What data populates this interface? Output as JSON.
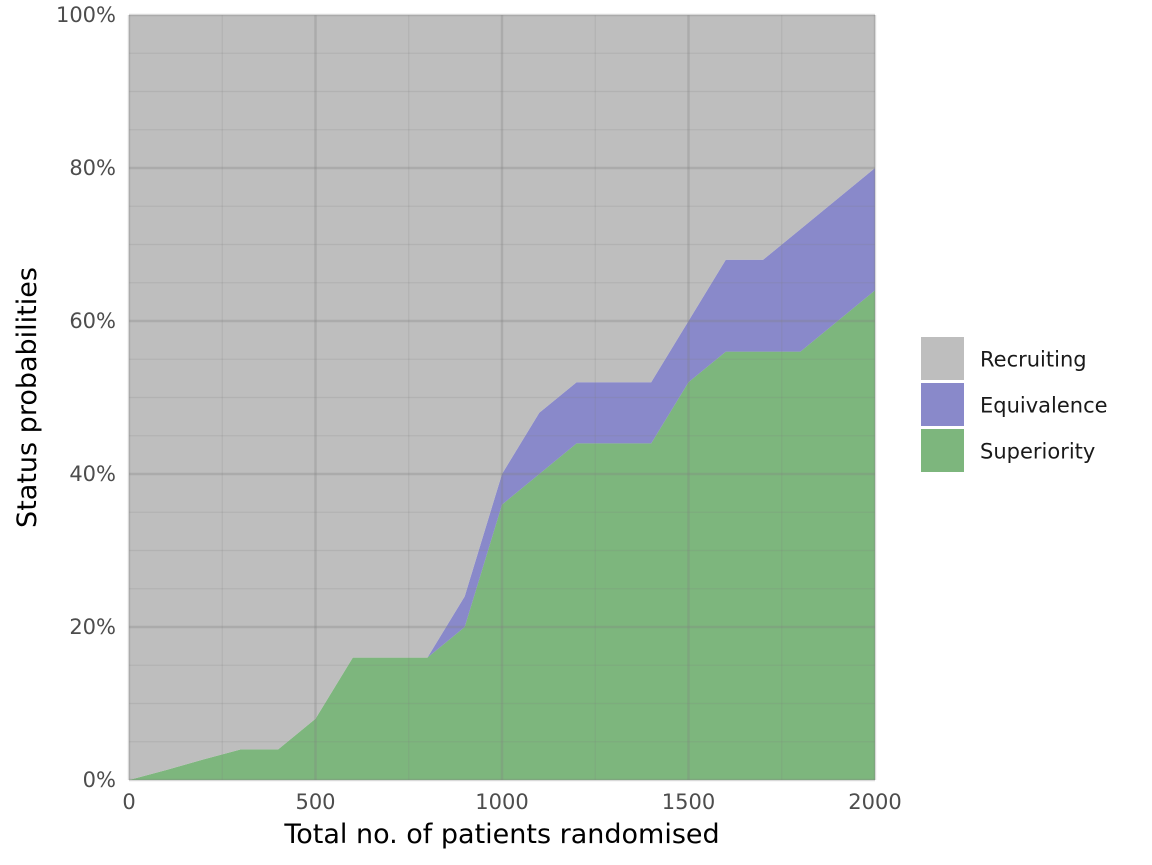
{
  "chart_data": {
    "type": "area",
    "stacked": true,
    "xlabel": "Total no. of patients randomised",
    "ylabel": "Status probabilities",
    "xlim": [
      0,
      2000
    ],
    "ylim": [
      0,
      1
    ],
    "x_ticks": [
      0,
      500,
      1000,
      1500,
      2000
    ],
    "x_tick_labels": [
      "0",
      "500",
      "1000",
      "1500",
      "2000"
    ],
    "y_ticks": [
      0,
      0.2,
      0.4,
      0.6,
      0.8,
      1.0
    ],
    "y_tick_labels": [
      "0%",
      "20%",
      "40%",
      "60%",
      "80%",
      "100%"
    ],
    "grid": true,
    "legend_position": "right",
    "x": [
      0,
      100,
      200,
      300,
      400,
      500,
      600,
      700,
      800,
      900,
      1000,
      1100,
      1200,
      1300,
      1400,
      1500,
      1600,
      1700,
      1800,
      1900,
      2000
    ],
    "series": [
      {
        "name": "Superiority",
        "color": "#4b9a4b",
        "values": [
          0.0,
          0.013,
          0.027,
          0.04,
          0.04,
          0.08,
          0.16,
          0.16,
          0.16,
          0.2,
          0.36,
          0.4,
          0.44,
          0.44,
          0.44,
          0.52,
          0.56,
          0.56,
          0.56,
          0.6,
          0.64
        ]
      },
      {
        "name": "Equivalence",
        "color": "#5b5bb5",
        "values": [
          0.0,
          0.0,
          0.0,
          0.0,
          0.0,
          0.0,
          0.0,
          0.0,
          0.0,
          0.04,
          0.04,
          0.08,
          0.08,
          0.08,
          0.08,
          0.08,
          0.12,
          0.12,
          0.16,
          0.16,
          0.16
        ]
      },
      {
        "name": "Recruiting",
        "color": "#b3b3b3",
        "values": [
          1.0,
          0.987,
          0.973,
          0.96,
          0.96,
          0.92,
          0.84,
          0.84,
          0.84,
          0.76,
          0.6,
          0.52,
          0.48,
          0.48,
          0.48,
          0.4,
          0.32,
          0.32,
          0.28,
          0.24,
          0.2
        ]
      }
    ],
    "legend": [
      "Recruiting",
      "Equivalence",
      "Superiority"
    ]
  }
}
